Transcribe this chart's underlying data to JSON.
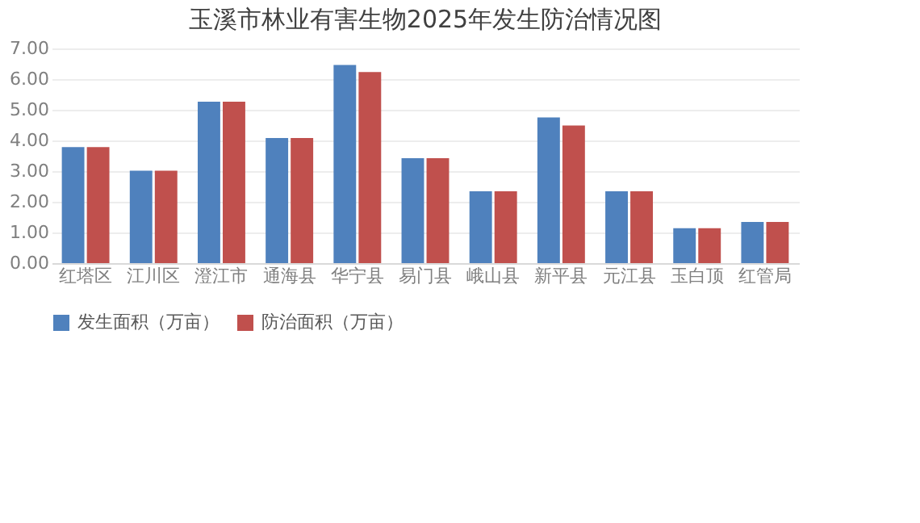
{
  "chart_data": {
    "type": "bar",
    "title": "玉溪市林业有害生物2025年发生防治情况图",
    "categories": [
      "红塔区",
      "江川区",
      "澄江市",
      "通海县",
      "华宁县",
      "易门县",
      "峨山县",
      "新平县",
      "元江县",
      "玉白顶",
      "红管局"
    ],
    "series": [
      {
        "name": "发生面积（万亩）",
        "color": "#4f81bd",
        "values": [
          3.78,
          3.01,
          5.26,
          4.08,
          6.46,
          3.42,
          2.34,
          4.75,
          2.34,
          1.14,
          1.34
        ]
      },
      {
        "name": "防治面积（万亩）",
        "color": "#c0504d",
        "values": [
          3.78,
          3.01,
          5.26,
          4.08,
          6.23,
          3.42,
          2.34,
          4.49,
          2.34,
          1.14,
          1.34
        ]
      }
    ],
    "ylim": [
      0,
      7
    ],
    "yticks": [
      {
        "value": 0,
        "label": "0.00"
      },
      {
        "value": 1,
        "label": "1.00"
      },
      {
        "value": 2,
        "label": "2.00"
      },
      {
        "value": 3,
        "label": "3.00"
      },
      {
        "value": 4,
        "label": "4.00"
      },
      {
        "value": 5,
        "label": "5.00"
      },
      {
        "value": 6,
        "label": "6.00"
      },
      {
        "value": 7,
        "label": "7.00"
      }
    ],
    "grid": "y",
    "legend": "bottom"
  }
}
